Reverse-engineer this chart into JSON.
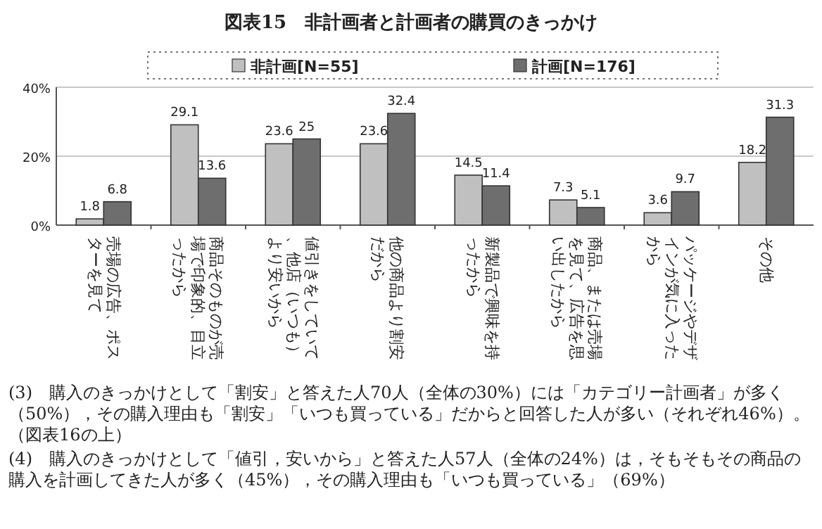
{
  "chart_data": {
    "type": "bar",
    "title": "図表15　非計画者と計画者の購買のきっかけ",
    "categories": [
      "売場の広告、ポスターを見て",
      "商品そのものが売場で印象的、目立ったから",
      "値引きをしていて、他店（いつも）より安いから",
      "他の商品より割安だから",
      "新製品で興味を持ったから",
      "商品、または売場を見て、広告を思い出したから",
      "パッケージやデザインが気に入ったから",
      "その他"
    ],
    "series": [
      {
        "name": "非計画[N=55]",
        "color": "#c0c0c0",
        "values": [
          1.8,
          29.1,
          23.6,
          23.6,
          14.5,
          7.3,
          3.6,
          18.2
        ]
      },
      {
        "name": "計画[N=176]",
        "color": "#6e6e6e",
        "values": [
          6.8,
          13.6,
          25.0,
          32.4,
          11.4,
          5.1,
          9.7,
          31.3
        ]
      }
    ],
    "ylim": [
      0,
      40
    ],
    "yticks": [
      {
        "value": 0,
        "label": "0%"
      },
      {
        "value": 20,
        "label": "20%"
      },
      {
        "value": 40,
        "label": "40%"
      }
    ],
    "grid": "y",
    "legend": "top",
    "data_labels": true,
    "annotations": [
      "(3)　購入のきっかけとして「割安」と答えた人70人（全体の30%）には「カテゴリー計画者」が多く（50%），その購入理由も「割安」「いつも買っている」だからと回答した人が多い（それぞれ46%）。（図表16の上）",
      "(4)　購入のきっかけとして「値引，安いから」と答えた人57人（全体の24%）は，そもそもその商品の購入を計画してきた人が多く（45%），その購入理由も「いつも買っている」（69%）"
    ]
  }
}
